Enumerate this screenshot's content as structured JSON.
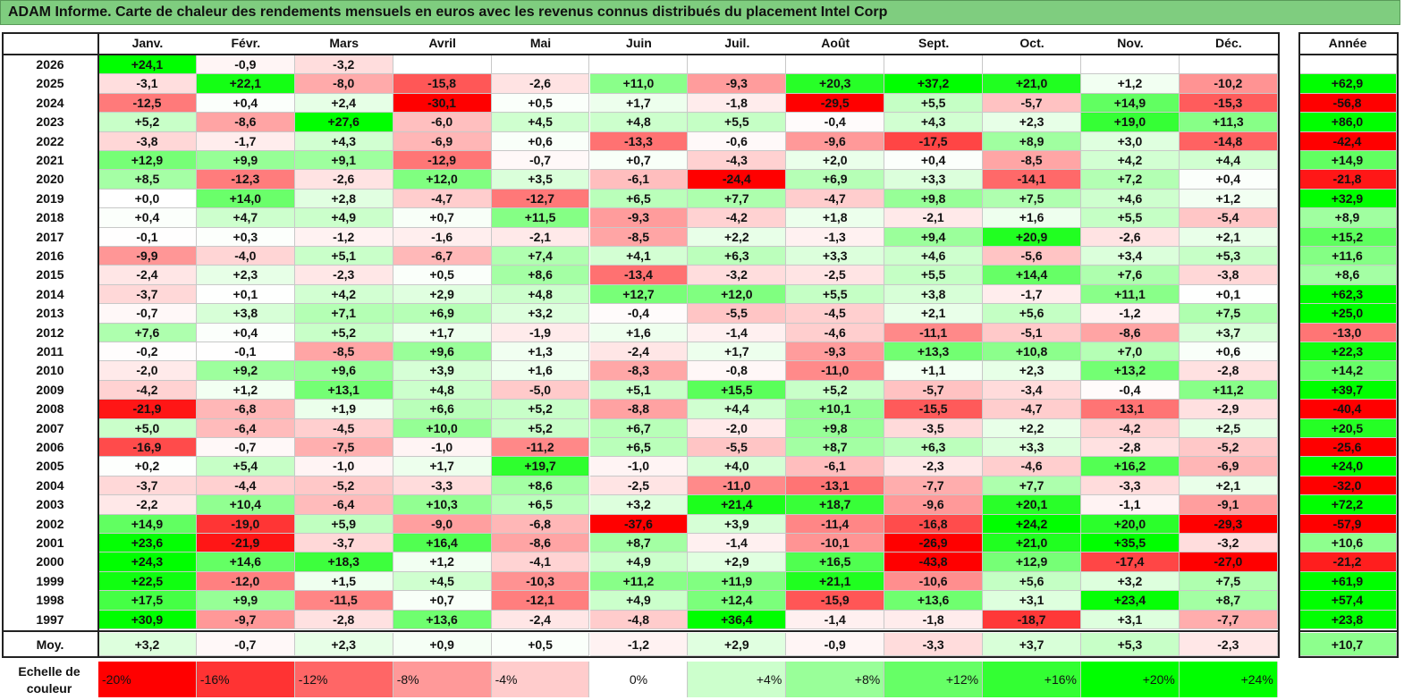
{
  "title": "ADAM Informe. Carte de chaleur des rendements mensuels en euros avec les revenus connus distribués du placement Intel Corp",
  "chart_data": {
    "type": "heatmap",
    "title": "ADAM Informe. Carte de chaleur des rendements mensuels en euros avec les revenus connus distribués du placement Intel Corp",
    "columns": [
      "Janv.",
      "Févr.",
      "Mars",
      "Avril",
      "Mai",
      "Juin",
      "Juil.",
      "Août",
      "Sept.",
      "Oct.",
      "Nov.",
      "Déc."
    ],
    "year_column": "Année",
    "rows": [
      {
        "year": "2026",
        "values": [
          "+24,1",
          "-0,9",
          "-3,2",
          "",
          "",
          "",
          "",
          "",
          "",
          "",
          "",
          ""
        ],
        "annual": ""
      },
      {
        "year": "2025",
        "values": [
          "-3,1",
          "+22,1",
          "-8,0",
          "-15,8",
          "-2,6",
          "+11,0",
          "-9,3",
          "+20,3",
          "+37,2",
          "+21,0",
          "+1,2",
          "-10,2"
        ],
        "annual": "+62,9"
      },
      {
        "year": "2024",
        "values": [
          "-12,5",
          "+0,4",
          "+2,4",
          "-30,1",
          "+0,5",
          "+1,7",
          "-1,8",
          "-29,5",
          "+5,5",
          "-5,7",
          "+14,9",
          "-15,3"
        ],
        "annual": "-56,8"
      },
      {
        "year": "2023",
        "values": [
          "+5,2",
          "-8,6",
          "+27,6",
          "-6,0",
          "+4,5",
          "+4,8",
          "+5,5",
          "-0,4",
          "+4,3",
          "+2,3",
          "+19,0",
          "+11,3"
        ],
        "annual": "+86,0"
      },
      {
        "year": "2022",
        "values": [
          "-3,8",
          "-1,7",
          "+4,3",
          "-6,9",
          "+0,6",
          "-13,3",
          "-0,6",
          "-9,6",
          "-17,5",
          "+8,9",
          "+3,0",
          "-14,8"
        ],
        "annual": "-42,4"
      },
      {
        "year": "2021",
        "values": [
          "+12,9",
          "+9,9",
          "+9,1",
          "-12,9",
          "-0,7",
          "+0,7",
          "-4,3",
          "+2,0",
          "+0,4",
          "-8,5",
          "+4,2",
          "+4,4"
        ],
        "annual": "+14,9"
      },
      {
        "year": "2020",
        "values": [
          "+8,5",
          "-12,3",
          "-2,6",
          "+12,0",
          "+3,5",
          "-6,1",
          "-24,4",
          "+6,9",
          "+3,3",
          "-14,1",
          "+7,2",
          "+0,4"
        ],
        "annual": "-21,8"
      },
      {
        "year": "2019",
        "values": [
          "+0,0",
          "+14,0",
          "+2,8",
          "-4,7",
          "-12,7",
          "+6,5",
          "+7,7",
          "-4,7",
          "+9,8",
          "+7,5",
          "+4,6",
          "+1,2"
        ],
        "annual": "+32,9"
      },
      {
        "year": "2018",
        "values": [
          "+0,4",
          "+4,7",
          "+4,9",
          "+0,7",
          "+11,5",
          "-9,3",
          "-4,2",
          "+1,8",
          "-2,1",
          "+1,6",
          "+5,5",
          "-5,4"
        ],
        "annual": "+8,9"
      },
      {
        "year": "2017",
        "values": [
          "-0,1",
          "+0,3",
          "-1,2",
          "-1,6",
          "-2,1",
          "-8,5",
          "+2,2",
          "-1,3",
          "+9,4",
          "+20,9",
          "-2,6",
          "+2,1"
        ],
        "annual": "+15,2"
      },
      {
        "year": "2016",
        "values": [
          "-9,9",
          "-4,0",
          "+5,1",
          "-6,7",
          "+7,4",
          "+4,1",
          "+6,3",
          "+3,3",
          "+4,6",
          "-5,6",
          "+3,4",
          "+5,3"
        ],
        "annual": "+11,6"
      },
      {
        "year": "2015",
        "values": [
          "-2,4",
          "+2,3",
          "-2,3",
          "+0,5",
          "+8,6",
          "-13,4",
          "-3,2",
          "-2,5",
          "+5,5",
          "+14,4",
          "+7,6",
          "-3,8"
        ],
        "annual": "+8,6"
      },
      {
        "year": "2014",
        "values": [
          "-3,7",
          "+0,1",
          "+4,2",
          "+2,9",
          "+4,8",
          "+12,7",
          "+12,0",
          "+5,5",
          "+3,8",
          "-1,7",
          "+11,1",
          "+0,1"
        ],
        "annual": "+62,3"
      },
      {
        "year": "2013",
        "values": [
          "-0,7",
          "+3,8",
          "+7,1",
          "+6,9",
          "+3,2",
          "-0,4",
          "-5,5",
          "-4,5",
          "+2,1",
          "+5,6",
          "-1,2",
          "+7,5"
        ],
        "annual": "+25,0"
      },
      {
        "year": "2012",
        "values": [
          "+7,6",
          "+0,4",
          "+5,2",
          "+1,7",
          "-1,9",
          "+1,6",
          "-1,4",
          "-4,6",
          "-11,1",
          "-5,1",
          "-8,6",
          "+3,7"
        ],
        "annual": "-13,0"
      },
      {
        "year": "2011",
        "values": [
          "-0,2",
          "-0,1",
          "-8,5",
          "+9,6",
          "+1,3",
          "-2,4",
          "+1,7",
          "-9,3",
          "+13,3",
          "+10,8",
          "+7,0",
          "+0,6"
        ],
        "annual": "+22,3"
      },
      {
        "year": "2010",
        "values": [
          "-2,0",
          "+9,2",
          "+9,6",
          "+3,9",
          "+1,6",
          "-8,3",
          "-0,8",
          "-11,0",
          "+1,1",
          "+2,3",
          "+13,2",
          "-2,8"
        ],
        "annual": "+14,2"
      },
      {
        "year": "2009",
        "values": [
          "-4,2",
          "+1,2",
          "+13,1",
          "+4,8",
          "-5,0",
          "+5,1",
          "+15,5",
          "+5,2",
          "-5,7",
          "-3,4",
          "-0,4",
          "+11,2"
        ],
        "annual": "+39,7"
      },
      {
        "year": "2008",
        "values": [
          "-21,9",
          "-6,8",
          "+1,9",
          "+6,6",
          "+5,2",
          "-8,8",
          "+4,4",
          "+10,1",
          "-15,5",
          "-4,7",
          "-13,1",
          "-2,9"
        ],
        "annual": "-40,4"
      },
      {
        "year": "2007",
        "values": [
          "+5,0",
          "-6,4",
          "-4,5",
          "+10,0",
          "+5,2",
          "+6,7",
          "-2,0",
          "+9,8",
          "-3,5",
          "+2,2",
          "-4,2",
          "+2,5"
        ],
        "annual": "+20,5"
      },
      {
        "year": "2006",
        "values": [
          "-16,9",
          "-0,7",
          "-7,5",
          "-1,0",
          "-11,2",
          "+6,5",
          "-5,5",
          "+8,7",
          "+6,3",
          "+3,3",
          "-2,8",
          "-5,2"
        ],
        "annual": "-25,6"
      },
      {
        "year": "2005",
        "values": [
          "+0,2",
          "+5,4",
          "-1,0",
          "+1,7",
          "+19,7",
          "-1,0",
          "+4,0",
          "-6,1",
          "-2,3",
          "-4,6",
          "+16,2",
          "-6,9"
        ],
        "annual": "+24,0"
      },
      {
        "year": "2004",
        "values": [
          "-3,7",
          "-4,4",
          "-5,2",
          "-3,3",
          "+8,6",
          "-2,5",
          "-11,0",
          "-13,1",
          "-7,7",
          "+7,7",
          "-3,3",
          "+2,1"
        ],
        "annual": "-32,0"
      },
      {
        "year": "2003",
        "values": [
          "-2,2",
          "+10,4",
          "-6,4",
          "+10,3",
          "+6,5",
          "+3,2",
          "+21,4",
          "+18,7",
          "-9,6",
          "+20,1",
          "-1,1",
          "-9,1"
        ],
        "annual": "+72,2"
      },
      {
        "year": "2002",
        "values": [
          "+14,9",
          "-19,0",
          "+5,9",
          "-9,0",
          "-6,8",
          "-37,6",
          "+3,9",
          "-11,4",
          "-16,8",
          "+24,2",
          "+20,0",
          "-29,3"
        ],
        "annual": "-57,9"
      },
      {
        "year": "2001",
        "values": [
          "+23,6",
          "-21,9",
          "-3,7",
          "+16,4",
          "-8,6",
          "+8,7",
          "-1,4",
          "-10,1",
          "-26,9",
          "+21,0",
          "+35,5",
          "-3,2"
        ],
        "annual": "+10,6"
      },
      {
        "year": "2000",
        "values": [
          "+24,3",
          "+14,6",
          "+18,3",
          "+1,2",
          "-4,1",
          "+4,9",
          "+2,9",
          "+16,5",
          "-43,8",
          "+12,9",
          "-17,4",
          "-27,0"
        ],
        "annual": "-21,2"
      },
      {
        "year": "1999",
        "values": [
          "+22,5",
          "-12,0",
          "+1,5",
          "+4,5",
          "-10,3",
          "+11,2",
          "+11,9",
          "+21,1",
          "-10,6",
          "+5,6",
          "+3,2",
          "+7,5"
        ],
        "annual": "+61,9"
      },
      {
        "year": "1998",
        "values": [
          "+17,5",
          "+9,9",
          "-11,5",
          "+0,7",
          "-12,1",
          "+4,9",
          "+12,4",
          "-15,9",
          "+13,6",
          "+3,1",
          "+23,4",
          "+8,7"
        ],
        "annual": "+57,4"
      },
      {
        "year": "1997",
        "values": [
          "+30,9",
          "-9,7",
          "-2,8",
          "+13,6",
          "-2,4",
          "-4,8",
          "+36,4",
          "-1,4",
          "-1,8",
          "-18,7",
          "+3,1",
          "-7,7"
        ],
        "annual": "+23,8"
      }
    ],
    "average": {
      "label": "Moy.",
      "values": [
        "+3,2",
        "-0,7",
        "+2,3",
        "+0,9",
        "+0,5",
        "-1,2",
        "+2,9",
        "-0,9",
        "-3,3",
        "+3,7",
        "+5,3",
        "-2,3"
      ],
      "annual": "+10,7"
    },
    "color_scale": {
      "label": "Echelle de couleur",
      "stops": [
        "-20%",
        "-16%",
        "-12%",
        "-8%",
        "-4%",
        "0%",
        "+4%",
        "+8%",
        "+12%",
        "+16%",
        "+20%",
        "+24%"
      ]
    },
    "colors": {
      "negative": "#ff0000",
      "neutral": "#ffffff",
      "positive": "#00ff00",
      "title_bar": "#7fcd7f"
    }
  }
}
